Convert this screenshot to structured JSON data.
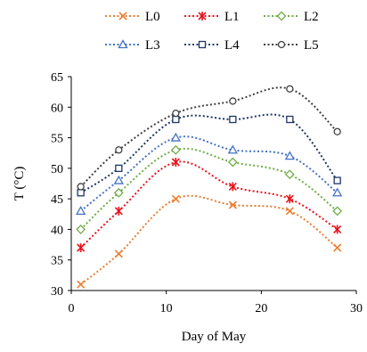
{
  "chart_data": {
    "type": "line",
    "title": "",
    "xlabel": "Day of May",
    "ylabel": "T (°C)",
    "xlim": [
      0,
      30
    ],
    "ylim": [
      30,
      65
    ],
    "xticks": [
      0,
      10,
      20,
      30
    ],
    "yticks": [
      30,
      35,
      40,
      45,
      50,
      55,
      60,
      65
    ],
    "grid": false,
    "legend_position": "top",
    "line_style": "dotted, smoothed",
    "x": [
      1,
      5,
      11,
      17,
      23,
      28
    ],
    "series": [
      {
        "name": "L0",
        "marker": "x",
        "color": "#ED7D31",
        "values": [
          31,
          36,
          45,
          44,
          43,
          37
        ]
      },
      {
        "name": "L1",
        "marker": "asterisk",
        "color": "#E8141C",
        "values": [
          37,
          43,
          51,
          47,
          45,
          40
        ]
      },
      {
        "name": "L2",
        "marker": "diamond",
        "color": "#70AD47",
        "values": [
          40,
          46,
          53,
          51,
          49,
          43
        ]
      },
      {
        "name": "L3",
        "marker": "triangle",
        "color": "#4472C4",
        "values": [
          43,
          48,
          55,
          53,
          52,
          46
        ]
      },
      {
        "name": "L4",
        "marker": "square",
        "color": "#1F3864",
        "values": [
          46,
          50,
          58,
          58,
          58,
          48
        ]
      },
      {
        "name": "L5",
        "marker": "circle",
        "color": "#404040",
        "values": [
          47,
          53,
          59,
          61,
          63,
          56
        ]
      }
    ]
  }
}
